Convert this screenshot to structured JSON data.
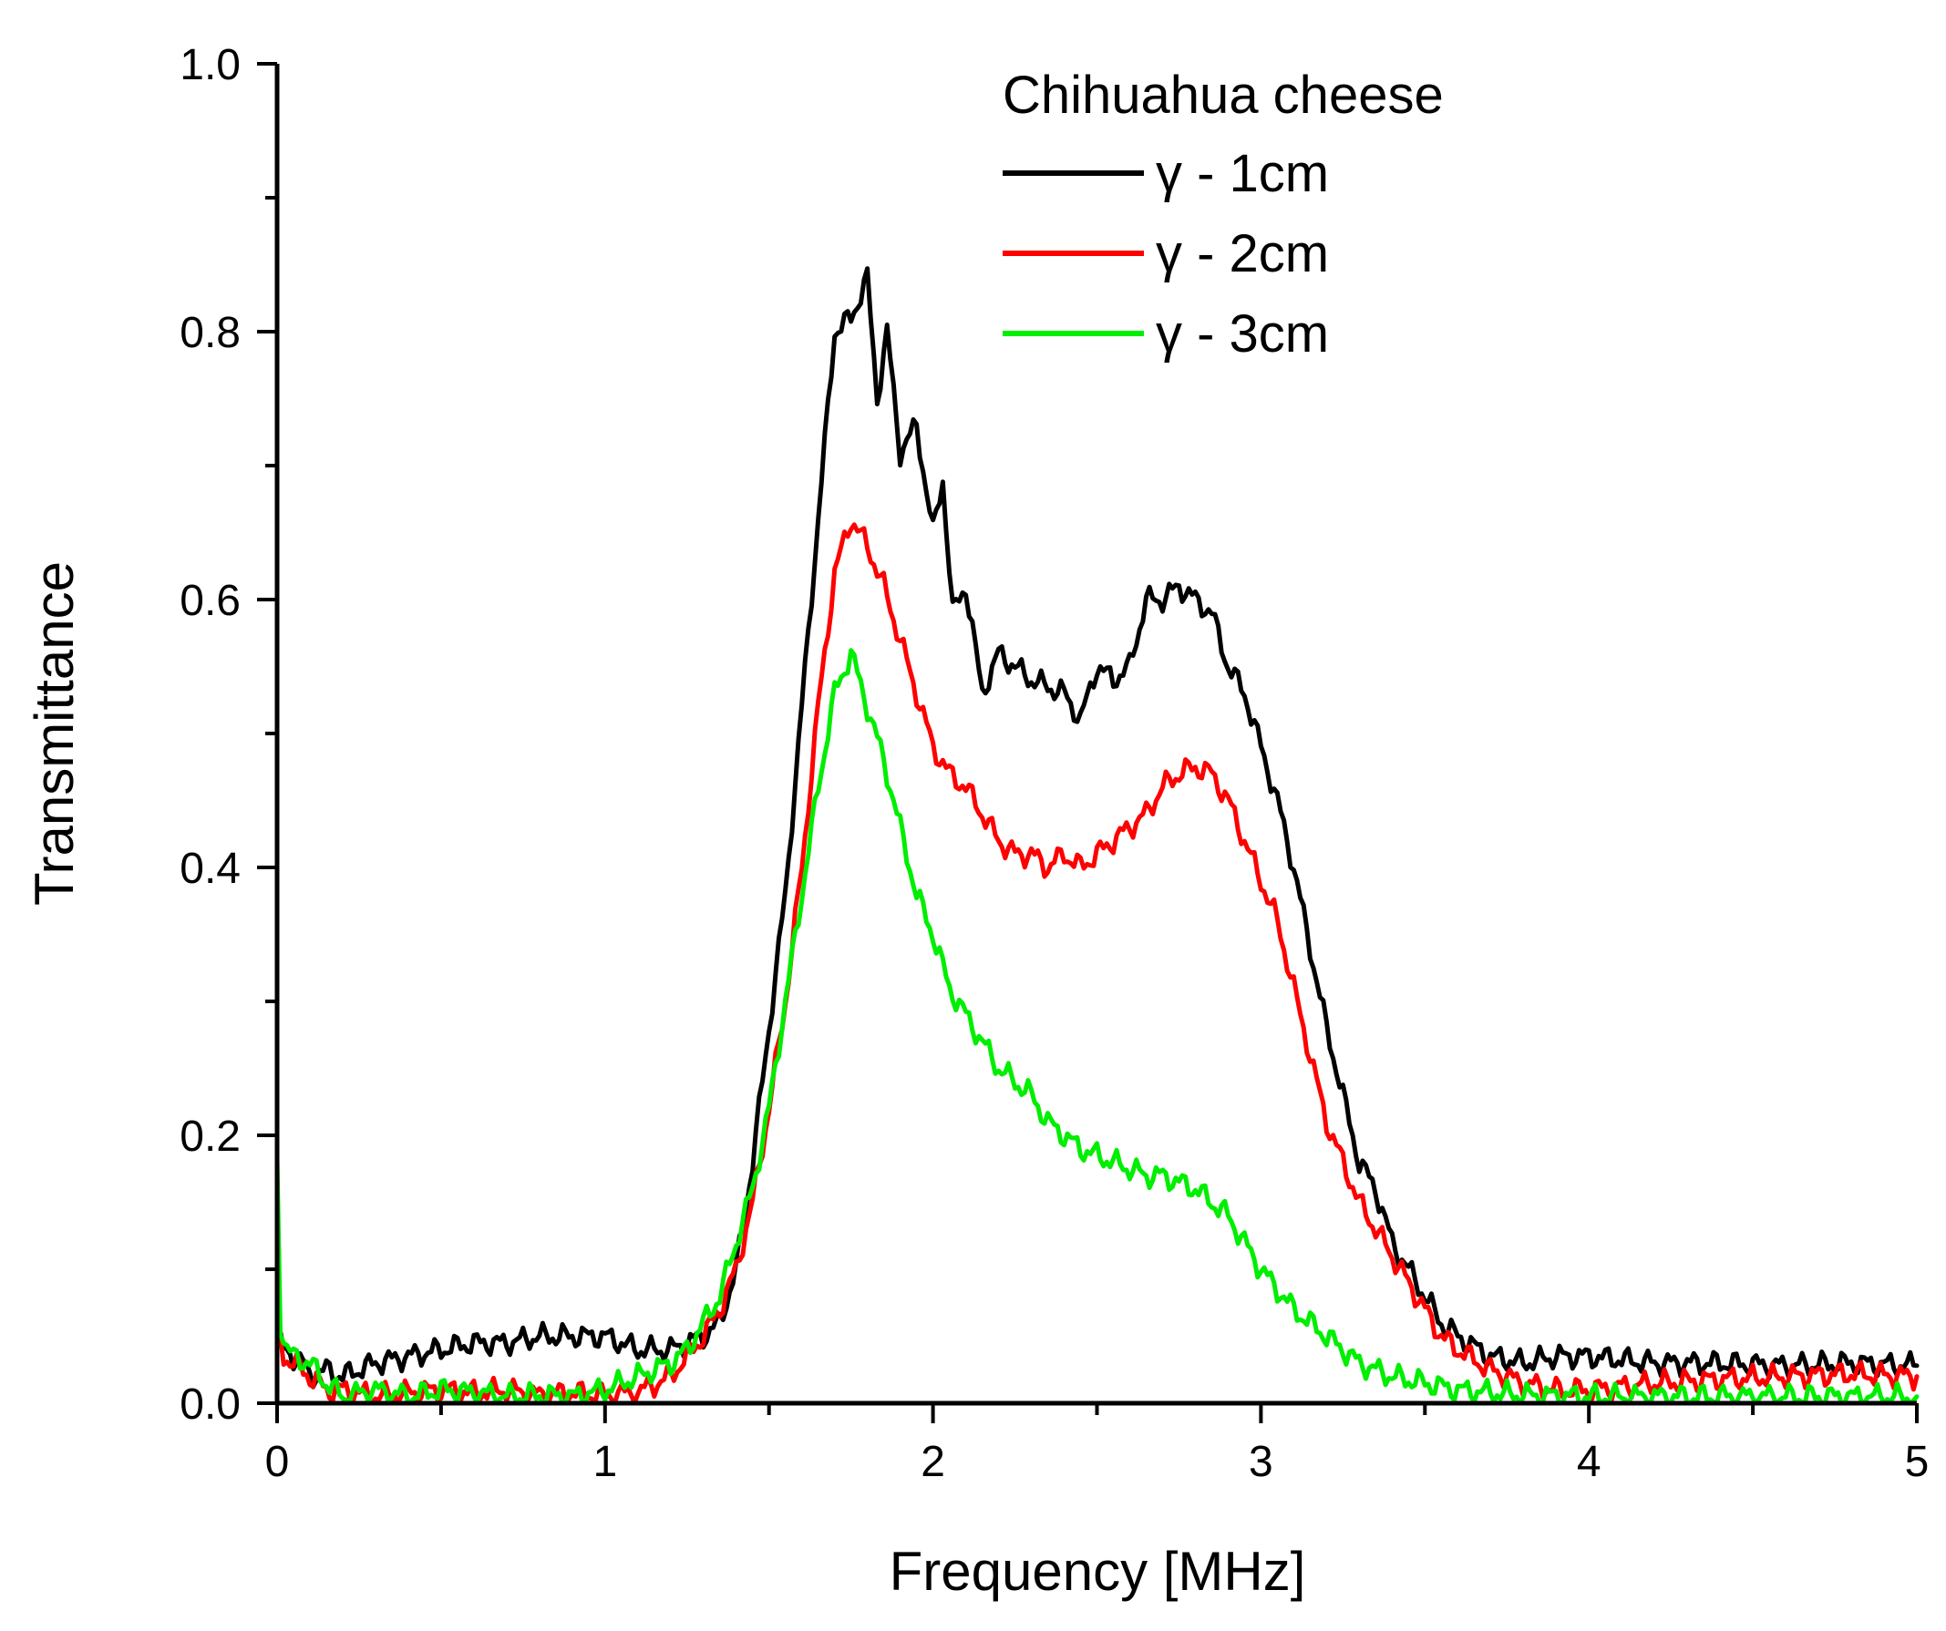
{
  "chart_data": {
    "type": "line",
    "title": "",
    "xlabel": "Frequency [MHz]",
    "ylabel": "Transmittance",
    "xlim": [
      0,
      5
    ],
    "ylim": [
      0,
      1.0
    ],
    "x_ticks": [
      "0",
      "1",
      "2",
      "3",
      "4",
      "5"
    ],
    "y_ticks": [
      "0.0",
      "0.2",
      "0.4",
      "0.6",
      "0.8",
      "1.0"
    ],
    "legend": {
      "title": "Chihuahua cheese",
      "placement": "top-right"
    },
    "series": [
      {
        "name": "γ - 1cm",
        "color": "#000000",
        "points": [
          [
            0,
            0.05
          ],
          [
            0.02,
            0.04
          ],
          [
            0.05,
            0.035
          ],
          [
            0.08,
            0.03
          ],
          [
            0.1,
            0.02
          ],
          [
            0.15,
            0.025
          ],
          [
            0.2,
            0.02
          ],
          [
            0.3,
            0.03
          ],
          [
            0.4,
            0.035
          ],
          [
            0.5,
            0.04
          ],
          [
            0.6,
            0.045
          ],
          [
            0.7,
            0.045
          ],
          [
            0.8,
            0.05
          ],
          [
            0.9,
            0.05
          ],
          [
            1.0,
            0.05
          ],
          [
            1.05,
            0.045
          ],
          [
            1.1,
            0.04
          ],
          [
            1.2,
            0.04
          ],
          [
            1.3,
            0.05
          ],
          [
            1.35,
            0.06
          ],
          [
            1.4,
            0.1
          ],
          [
            1.45,
            0.18
          ],
          [
            1.5,
            0.28
          ],
          [
            1.55,
            0.38
          ],
          [
            1.6,
            0.52
          ],
          [
            1.65,
            0.66
          ],
          [
            1.7,
            0.8
          ],
          [
            1.75,
            0.81
          ],
          [
            1.8,
            0.84
          ],
          [
            1.83,
            0.75
          ],
          [
            1.86,
            0.8
          ],
          [
            1.9,
            0.71
          ],
          [
            1.95,
            0.73
          ],
          [
            2.0,
            0.65
          ],
          [
            2.03,
            0.69
          ],
          [
            2.06,
            0.59
          ],
          [
            2.1,
            0.61
          ],
          [
            2.15,
            0.53
          ],
          [
            2.2,
            0.56
          ],
          [
            2.3,
            0.54
          ],
          [
            2.4,
            0.53
          ],
          [
            2.45,
            0.51
          ],
          [
            2.5,
            0.55
          ],
          [
            2.55,
            0.54
          ],
          [
            2.6,
            0.55
          ],
          [
            2.65,
            0.6
          ],
          [
            2.7,
            0.6
          ],
          [
            2.75,
            0.61
          ],
          [
            2.8,
            0.6
          ],
          [
            2.85,
            0.59
          ],
          [
            2.9,
            0.55
          ],
          [
            2.95,
            0.53
          ],
          [
            3.0,
            0.49
          ],
          [
            3.05,
            0.45
          ],
          [
            3.1,
            0.4
          ],
          [
            3.15,
            0.34
          ],
          [
            3.2,
            0.28
          ],
          [
            3.25,
            0.23
          ],
          [
            3.3,
            0.18
          ],
          [
            3.35,
            0.16
          ],
          [
            3.4,
            0.12
          ],
          [
            3.45,
            0.1
          ],
          [
            3.5,
            0.08
          ],
          [
            3.55,
            0.06
          ],
          [
            3.6,
            0.05
          ],
          [
            3.7,
            0.035
          ],
          [
            3.8,
            0.03
          ],
          [
            3.9,
            0.035
          ],
          [
            4.0,
            0.035
          ],
          [
            4.2,
            0.03
          ],
          [
            4.4,
            0.03
          ],
          [
            4.6,
            0.028
          ],
          [
            4.8,
            0.03
          ],
          [
            5.0,
            0.028
          ]
        ]
      },
      {
        "name": "γ - 2cm",
        "color": "#ff0000",
        "points": [
          [
            0,
            0.06
          ],
          [
            0.02,
            0.035
          ],
          [
            0.05,
            0.03
          ],
          [
            0.1,
            0.02
          ],
          [
            0.15,
            0.01
          ],
          [
            0.2,
            0.01
          ],
          [
            0.3,
            0.005
          ],
          [
            0.4,
            0.008
          ],
          [
            0.5,
            0.01
          ],
          [
            0.6,
            0.008
          ],
          [
            0.7,
            0.01
          ],
          [
            0.8,
            0.006
          ],
          [
            0.9,
            0.008
          ],
          [
            1.0,
            0.006
          ],
          [
            1.1,
            0.008
          ],
          [
            1.2,
            0.02
          ],
          [
            1.25,
            0.035
          ],
          [
            1.3,
            0.05
          ],
          [
            1.35,
            0.07
          ],
          [
            1.4,
            0.1
          ],
          [
            1.45,
            0.15
          ],
          [
            1.5,
            0.22
          ],
          [
            1.55,
            0.3
          ],
          [
            1.6,
            0.4
          ],
          [
            1.65,
            0.52
          ],
          [
            1.7,
            0.62
          ],
          [
            1.75,
            0.66
          ],
          [
            1.8,
            0.64
          ],
          [
            1.85,
            0.61
          ],
          [
            1.9,
            0.57
          ],
          [
            1.95,
            0.53
          ],
          [
            2.0,
            0.49
          ],
          [
            2.05,
            0.47
          ],
          [
            2.1,
            0.46
          ],
          [
            2.15,
            0.44
          ],
          [
            2.2,
            0.42
          ],
          [
            2.25,
            0.41
          ],
          [
            2.3,
            0.41
          ],
          [
            2.35,
            0.4
          ],
          [
            2.4,
            0.41
          ],
          [
            2.45,
            0.4
          ],
          [
            2.5,
            0.41
          ],
          [
            2.55,
            0.42
          ],
          [
            2.6,
            0.43
          ],
          [
            2.65,
            0.44
          ],
          [
            2.7,
            0.46
          ],
          [
            2.75,
            0.47
          ],
          [
            2.8,
            0.475
          ],
          [
            2.85,
            0.47
          ],
          [
            2.9,
            0.45
          ],
          [
            2.95,
            0.42
          ],
          [
            3.0,
            0.39
          ],
          [
            3.05,
            0.36
          ],
          [
            3.1,
            0.31
          ],
          [
            3.15,
            0.26
          ],
          [
            3.2,
            0.21
          ],
          [
            3.25,
            0.18
          ],
          [
            3.3,
            0.15
          ],
          [
            3.35,
            0.13
          ],
          [
            3.4,
            0.11
          ],
          [
            3.45,
            0.09
          ],
          [
            3.5,
            0.07
          ],
          [
            3.55,
            0.05
          ],
          [
            3.6,
            0.04
          ],
          [
            3.7,
            0.025
          ],
          [
            3.8,
            0.015
          ],
          [
            3.9,
            0.01
          ],
          [
            4.0,
            0.01
          ],
          [
            4.2,
            0.015
          ],
          [
            4.4,
            0.018
          ],
          [
            4.6,
            0.02
          ],
          [
            4.8,
            0.022
          ],
          [
            5.0,
            0.02
          ]
        ]
      },
      {
        "name": "γ - 3cm",
        "color": "#00ee00",
        "points": [
          [
            0,
            0.18
          ],
          [
            0.01,
            0.06
          ],
          [
            0.03,
            0.04
          ],
          [
            0.05,
            0.035
          ],
          [
            0.1,
            0.03
          ],
          [
            0.15,
            0.015
          ],
          [
            0.2,
            0.005
          ],
          [
            0.3,
            0.01
          ],
          [
            0.4,
            0.005
          ],
          [
            0.5,
            0.01
          ],
          [
            0.6,
            0.008
          ],
          [
            0.7,
            0.005
          ],
          [
            0.8,
            0.006
          ],
          [
            0.9,
            0.005
          ],
          [
            1.0,
            0.01
          ],
          [
            1.1,
            0.02
          ],
          [
            1.2,
            0.03
          ],
          [
            1.25,
            0.04
          ],
          [
            1.3,
            0.06
          ],
          [
            1.35,
            0.08
          ],
          [
            1.4,
            0.12
          ],
          [
            1.45,
            0.16
          ],
          [
            1.5,
            0.22
          ],
          [
            1.55,
            0.3
          ],
          [
            1.6,
            0.38
          ],
          [
            1.65,
            0.46
          ],
          [
            1.7,
            0.53
          ],
          [
            1.75,
            0.56
          ],
          [
            1.8,
            0.52
          ],
          [
            1.85,
            0.48
          ],
          [
            1.9,
            0.43
          ],
          [
            1.95,
            0.38
          ],
          [
            2.0,
            0.35
          ],
          [
            2.05,
            0.31
          ],
          [
            2.1,
            0.29
          ],
          [
            2.15,
            0.27
          ],
          [
            2.2,
            0.25
          ],
          [
            2.25,
            0.24
          ],
          [
            2.3,
            0.23
          ],
          [
            2.35,
            0.21
          ],
          [
            2.4,
            0.2
          ],
          [
            2.45,
            0.19
          ],
          [
            2.5,
            0.185
          ],
          [
            2.55,
            0.18
          ],
          [
            2.6,
            0.175
          ],
          [
            2.65,
            0.17
          ],
          [
            2.7,
            0.17
          ],
          [
            2.75,
            0.165
          ],
          [
            2.8,
            0.16
          ],
          [
            2.85,
            0.15
          ],
          [
            2.9,
            0.14
          ],
          [
            2.95,
            0.12
          ],
          [
            3.0,
            0.1
          ],
          [
            3.05,
            0.085
          ],
          [
            3.1,
            0.07
          ],
          [
            3.15,
            0.06
          ],
          [
            3.2,
            0.05
          ],
          [
            3.25,
            0.04
          ],
          [
            3.3,
            0.03
          ],
          [
            3.4,
            0.02
          ],
          [
            3.5,
            0.015
          ],
          [
            3.6,
            0.01
          ],
          [
            3.7,
            0.008
          ],
          [
            3.8,
            0.006
          ],
          [
            4.0,
            0.005
          ],
          [
            4.5,
            0.005
          ],
          [
            5.0,
            0.005
          ]
        ]
      }
    ]
  }
}
